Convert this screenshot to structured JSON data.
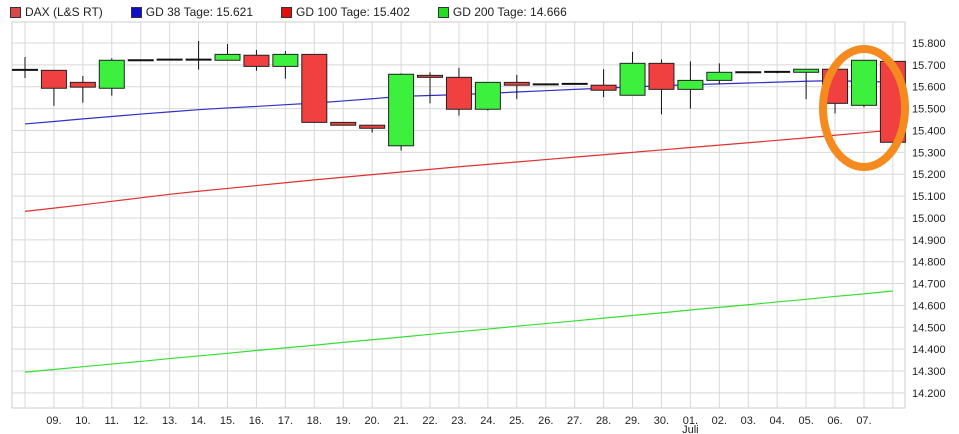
{
  "chart_data": {
    "type": "candlestick",
    "title": "",
    "legend": [
      {
        "label": "DAX (L&S RT)",
        "color": "#d94848"
      },
      {
        "label": "GD 38 Tage: 15.621",
        "color": "#1010cc"
      },
      {
        "label": "GD 100 Tage: 15.402",
        "color": "#e01010"
      },
      {
        "label": "GD 200 Tage: 14.666",
        "color": "#22dd22"
      }
    ],
    "legend_position": "top-left",
    "ylim": [
      14131,
      15896
    ],
    "y_ticks": [
      "15.800",
      "15.700",
      "15.600",
      "15.500",
      "15.400",
      "15.300",
      "15.200",
      "15.100",
      "15.000",
      "14.900",
      "14.800",
      "14.700",
      "14.600",
      "14.500",
      "14.400",
      "14.300",
      "14.200"
    ],
    "y_tick_values": [
      15800,
      15700,
      15600,
      15500,
      15400,
      15300,
      15200,
      15100,
      15000,
      14900,
      14800,
      14700,
      14600,
      14500,
      14400,
      14300,
      14200
    ],
    "x_labels": [
      "",
      "09.",
      "10.",
      "11.",
      "12.",
      "13.",
      "14.",
      "15.",
      "16.",
      "17.",
      "18.",
      "19.",
      "20.",
      "21.",
      "22.",
      "23.",
      "24.",
      "25.",
      "26.",
      "27.",
      "28.",
      "29.",
      "30.",
      "01.",
      "02.",
      "03.",
      "04.",
      "05.",
      "06.",
      "07.",
      ""
    ],
    "month_label": {
      "index": 23,
      "text": "Juli"
    },
    "candles": [
      {
        "o": 15677,
        "h": 15736,
        "l": 15640,
        "c": 15677
      },
      {
        "o": 15675,
        "h": 15675,
        "l": 15513,
        "c": 15593
      },
      {
        "o": 15620,
        "h": 15649,
        "l": 15527,
        "c": 15598
      },
      {
        "o": 15593,
        "h": 15730,
        "l": 15559,
        "c": 15721
      },
      {
        "o": 15721,
        "h": 15722,
        "l": 15720,
        "c": 15721
      },
      {
        "o": 15724,
        "h": 15725,
        "l": 15723,
        "c": 15724
      },
      {
        "o": 15724,
        "h": 15809,
        "l": 15678,
        "c": 15724
      },
      {
        "o": 15721,
        "h": 15795,
        "l": 15721,
        "c": 15748
      },
      {
        "o": 15744,
        "h": 15768,
        "l": 15673,
        "c": 15693
      },
      {
        "o": 15693,
        "h": 15763,
        "l": 15637,
        "c": 15748
      },
      {
        "o": 15748,
        "h": 15748,
        "l": 15437,
        "c": 15437
      },
      {
        "o": 15437,
        "h": 15437,
        "l": 15424,
        "c": 15424
      },
      {
        "o": 15424,
        "h": 15424,
        "l": 15390,
        "c": 15410
      },
      {
        "o": 15330,
        "h": 15661,
        "l": 15308,
        "c": 15657
      },
      {
        "o": 15652,
        "h": 15666,
        "l": 15524,
        "c": 15643
      },
      {
        "o": 15643,
        "h": 15686,
        "l": 15468,
        "c": 15497
      },
      {
        "o": 15497,
        "h": 15620,
        "l": 15491,
        "c": 15620
      },
      {
        "o": 15620,
        "h": 15654,
        "l": 15543,
        "c": 15607
      },
      {
        "o": 15611,
        "h": 15612,
        "l": 15610,
        "c": 15611
      },
      {
        "o": 15613,
        "h": 15614,
        "l": 15612,
        "c": 15613
      },
      {
        "o": 15607,
        "h": 15680,
        "l": 15552,
        "c": 15584
      },
      {
        "o": 15561,
        "h": 15759,
        "l": 15561,
        "c": 15707
      },
      {
        "o": 15707,
        "h": 15725,
        "l": 15474,
        "c": 15588
      },
      {
        "o": 15588,
        "h": 15716,
        "l": 15500,
        "c": 15629
      },
      {
        "o": 15629,
        "h": 15707,
        "l": 15611,
        "c": 15666
      },
      {
        "o": 15666,
        "h": 15667,
        "l": 15665,
        "c": 15666
      },
      {
        "o": 15668,
        "h": 15669,
        "l": 15661,
        "c": 15668
      },
      {
        "o": 15666,
        "h": 15680,
        "l": 15543,
        "c": 15680
      },
      {
        "o": 15680,
        "h": 15680,
        "l": 15478,
        "c": 15524
      },
      {
        "o": 15515,
        "h": 15721,
        "l": 15506,
        "c": 15721
      },
      {
        "o": 15716,
        "h": 15716,
        "l": 15323,
        "c": 15346
      }
    ],
    "series": [
      {
        "name": "GD 38 Tage",
        "values": [
          15430,
          15441,
          15453,
          15464,
          15475,
          15485,
          15495,
          15503,
          15510,
          15518,
          15525,
          15535,
          15545,
          15556,
          15560,
          15564,
          15570,
          15576,
          15582,
          15588,
          15593,
          15599,
          15605,
          15609,
          15613,
          15617,
          15621,
          15625,
          15628,
          15624,
          15621
        ]
      },
      {
        "name": "GD 100 Tage",
        "values": [
          15030,
          15045,
          15060,
          15076,
          15092,
          15108,
          15122,
          15135,
          15148,
          15161,
          15174,
          15186,
          15198,
          15210,
          15222,
          15234,
          15245,
          15256,
          15267,
          15278,
          15289,
          15300,
          15311,
          15322,
          15333,
          15344,
          15355,
          15366,
          15378,
          15390,
          15402
        ]
      },
      {
        "name": "GD 200 Tage",
        "values": [
          14295,
          14307,
          14320,
          14332,
          14344,
          14357,
          14369,
          14381,
          14394,
          14406,
          14418,
          14431,
          14443,
          14455,
          14468,
          14480,
          14492,
          14505,
          14517,
          14529,
          14542,
          14554,
          14566,
          14579,
          14591,
          14603,
          14616,
          14628,
          14641,
          14653,
          14666
        ]
      }
    ]
  }
}
